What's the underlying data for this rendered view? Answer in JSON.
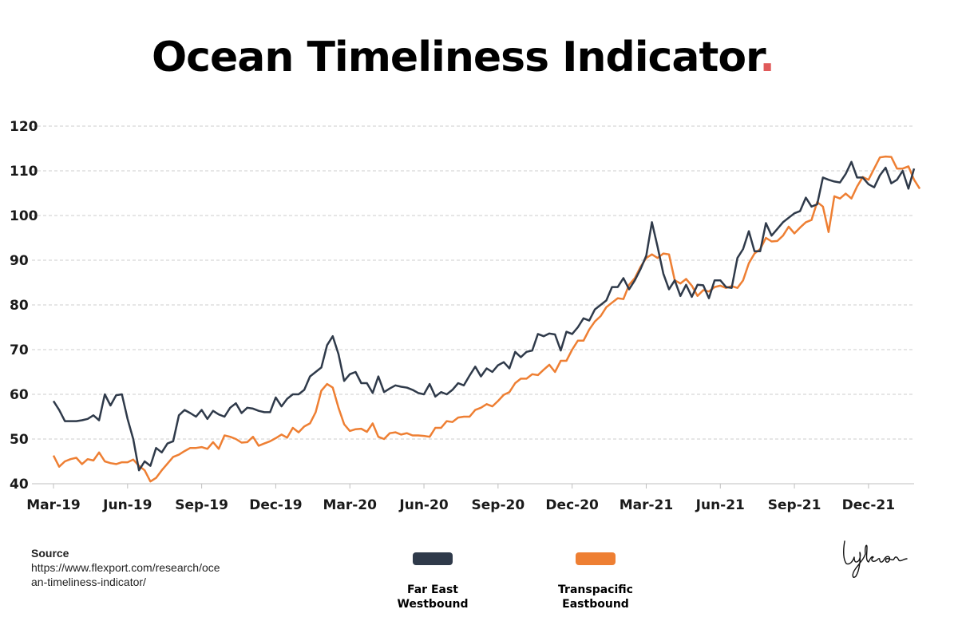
{
  "title": "Ocean Timeliness Indicator",
  "title_dot": ".",
  "colors": {
    "far_east": "#2f3a4a",
    "transpacific": "#ee7f33",
    "grid": "#cccccc",
    "title_dot": "#e05a5a"
  },
  "source": {
    "label": "Source",
    "url": "https://www.flexport.com/research/ocean-timeliness-indicator/"
  },
  "signature": "Lykeion",
  "chart_data": {
    "type": "line",
    "title": "Ocean Timeliness Indicator",
    "xlabel": "",
    "ylabel": "",
    "ylim": [
      40,
      120
    ],
    "yticks": [
      40,
      50,
      60,
      70,
      80,
      90,
      100,
      110,
      120
    ],
    "x_tick_labels": [
      "Mar-19",
      "Jun-19",
      "Sep-19",
      "Dec-19",
      "Mar-20",
      "Jun-20",
      "Sep-20",
      "Dec-20",
      "Mar-21",
      "Jun-21",
      "Sep-21",
      "Dec-21"
    ],
    "x_tick_index": [
      0,
      13,
      26,
      39,
      52,
      65,
      78,
      91,
      104,
      117,
      130,
      143
    ],
    "grid": true,
    "legend_position": "bottom-center",
    "series": [
      {
        "name": "Far East Westbound",
        "color": "#2f3a4a",
        "values": [
          58.5,
          56.5,
          54,
          54,
          54,
          54.2,
          54.5,
          55.3,
          54.2,
          60,
          57.5,
          59.8,
          60,
          54.5,
          50,
          43,
          45,
          44,
          48,
          47,
          49,
          49.5,
          55.3,
          56.5,
          55.8,
          55,
          56.5,
          54.5,
          56.3,
          55.5,
          55,
          57,
          58,
          55.8,
          57,
          56.8,
          56.3,
          56,
          56,
          59.3,
          57.3,
          59,
          60,
          60,
          61,
          64,
          65,
          66,
          71,
          73,
          69,
          63,
          64.5,
          65,
          62.5,
          62.5,
          60.3,
          64,
          60.5,
          61.3,
          62,
          61.7,
          61.5,
          61,
          60.3,
          60,
          62.3,
          59.5,
          60.5,
          60,
          61,
          62.5,
          62,
          64.2,
          66.2,
          64,
          65.8,
          65,
          66.5,
          67.2,
          65.8,
          69.5,
          68.3,
          69.5,
          69.8,
          73.5,
          73,
          73.6,
          73.4,
          69.8,
          74,
          73.5,
          75,
          77,
          76.5,
          79,
          80,
          81,
          84,
          84,
          86,
          83.5,
          85.5,
          88,
          91,
          98.5,
          93,
          87,
          83.5,
          85.5,
          82,
          84.5,
          81.8,
          84.5,
          84.4,
          81.5,
          85.5,
          85.5,
          84,
          83.8,
          90.5,
          92.5,
          96.5,
          92,
          92,
          98.3,
          95.5,
          97,
          98.5,
          99.5,
          100.5,
          101,
          104,
          102,
          102.5,
          108.5,
          108,
          107.6,
          107.4,
          109.3,
          112,
          108.5,
          108.5,
          107,
          106.3,
          109,
          110.7,
          107.2,
          108,
          110,
          106,
          110.5
        ]
      },
      {
        "name": "Transpacific Eastbound",
        "color": "#ee7f33",
        "values": [
          46.3,
          43.8,
          45,
          45.5,
          45.8,
          44.4,
          45.5,
          45.2,
          47,
          45,
          44.6,
          44.4,
          44.8,
          44.8,
          45.4,
          44,
          43,
          40.5,
          41.3,
          43,
          44.5,
          46,
          46.5,
          47.3,
          48,
          48,
          48.2,
          47.8,
          49.3,
          47.8,
          50.8,
          50.5,
          50,
          49.2,
          49.3,
          50.5,
          48.5,
          49,
          49.5,
          50.2,
          51,
          50.3,
          52.5,
          51.5,
          52.8,
          53.5,
          56,
          60.8,
          62.3,
          61.5,
          57,
          53.3,
          51.8,
          52.2,
          52.3,
          51.6,
          53.5,
          50.5,
          50,
          51.3,
          51.5,
          51,
          51.3,
          50.8,
          50.8,
          50.7,
          50.5,
          52.5,
          52.5,
          54,
          53.8,
          54.8,
          55,
          55,
          56.5,
          57,
          57.8,
          57.3,
          58.5,
          59.9,
          60.5,
          62.5,
          63.5,
          63.5,
          64.5,
          64.3,
          65.5,
          66.6,
          65,
          67.5,
          67.5,
          70,
          72,
          72,
          74.5,
          76.3,
          77.5,
          79.5,
          80.5,
          81.5,
          81.3,
          84.5,
          86,
          88.5,
          90.5,
          91.3,
          90.5,
          91.5,
          91.3,
          85.5,
          84.8,
          85.8,
          84.3,
          82,
          83.3,
          83,
          84,
          84.3,
          83.8,
          84.2,
          83.8,
          85.5,
          89.3,
          91.5,
          92.5,
          95,
          94.2,
          94.3,
          95.5,
          97.5,
          96,
          97.3,
          98.5,
          99,
          103,
          102,
          96.3,
          104.3,
          103.8,
          104.9,
          103.8,
          106.5,
          108.6,
          108,
          110.5,
          113,
          113.2,
          113.1,
          110.5,
          110.5,
          111,
          108,
          106
        ]
      }
    ]
  }
}
